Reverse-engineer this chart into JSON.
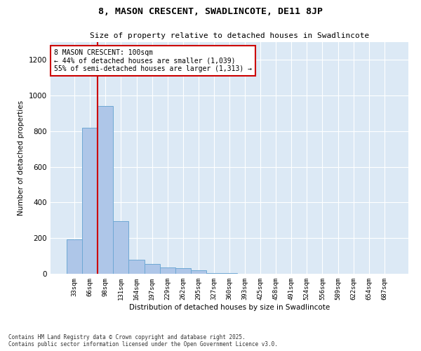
{
  "title_line1": "8, MASON CRESCENT, SWADLINCOTE, DE11 8JP",
  "title_line2": "Size of property relative to detached houses in Swadlincote",
  "xlabel": "Distribution of detached houses by size in Swadlincote",
  "ylabel": "Number of detached properties",
  "footnote_line1": "Contains HM Land Registry data © Crown copyright and database right 2025.",
  "footnote_line2": "Contains public sector information licensed under the Open Government Licence v3.0.",
  "annotation_title": "8 MASON CRESCENT: 100sqm",
  "annotation_line1": "← 44% of detached houses are smaller (1,039)",
  "annotation_line2": "55% of semi-detached houses are larger (1,313) →",
  "bar_color": "#aec6e8",
  "bar_edge_color": "#6fa8d4",
  "marker_line_color": "#cc0000",
  "annotation_box_edge_color": "#cc0000",
  "background_color": "#dce9f5",
  "grid_color": "#ffffff",
  "categories": [
    "33sqm",
    "66sqm",
    "98sqm",
    "131sqm",
    "164sqm",
    "197sqm",
    "229sqm",
    "262sqm",
    "295sqm",
    "327sqm",
    "360sqm",
    "393sqm",
    "425sqm",
    "458sqm",
    "491sqm",
    "524sqm",
    "556sqm",
    "589sqm",
    "622sqm",
    "654sqm",
    "687sqm"
  ],
  "values": [
    195,
    820,
    940,
    295,
    80,
    55,
    35,
    30,
    20,
    5,
    2,
    1,
    0,
    0,
    0,
    0,
    0,
    0,
    0,
    0,
    0
  ],
  "marker_bar_index": 2,
  "ylim": [
    0,
    1300
  ],
  "yticks": [
    0,
    200,
    400,
    600,
    800,
    1000,
    1200
  ]
}
